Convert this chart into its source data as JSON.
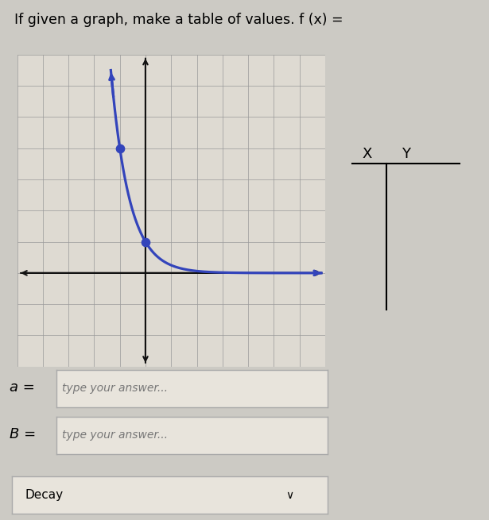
{
  "title_main": "If given a graph, make a table of values. ",
  "title_fx": "f (x) =",
  "curve_color": "#3344bb",
  "dot_color": "#3344bb",
  "dot_size": 55,
  "grid_color": "#999999",
  "grid_minor_color": "#bbbbbb",
  "axis_color": "#111111",
  "background_color": "#cccac4",
  "graph_bg_color": "#dedad2",
  "dot_points": [
    [
      -1,
      4
    ],
    [
      0,
      1
    ]
  ],
  "x_range": [
    -5,
    7
  ],
  "y_range": [
    -3,
    7
  ],
  "a_label": "a =",
  "b_label": "B =",
  "a_placeholder": "type your answer...",
  "b_placeholder": "type your answer...",
  "decay_label": "Decay",
  "chevron": "∨",
  "box_color": "#e8e4dc",
  "box_edge_color": "#aaaaaa"
}
